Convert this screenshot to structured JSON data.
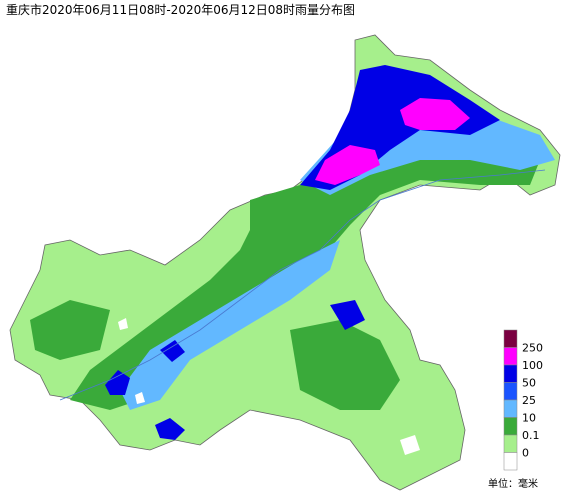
{
  "title": "重庆市2020年06月11日08时-2020年06月12日08时雨量分布图",
  "legend": {
    "colors": [
      "#7b0041",
      "#ff00ff",
      "#0000e6",
      "#1a54ff",
      "#62b8ff",
      "#3aaa3a",
      "#a6ef8c",
      "#ffffff"
    ],
    "labels": [
      "250",
      "100",
      "50",
      "25",
      "10",
      "0.1",
      "0"
    ]
  },
  "unit": "单位：毫米"
}
